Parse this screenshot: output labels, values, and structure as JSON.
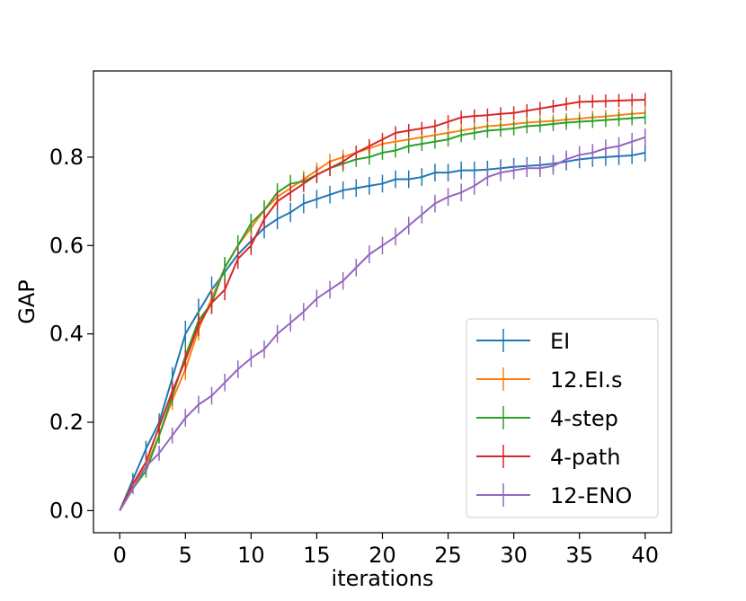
{
  "chart_data": {
    "type": "line",
    "title": "",
    "xlabel": "iterations",
    "ylabel": "GAP",
    "xlim": [
      -2,
      42
    ],
    "ylim": [
      -0.05,
      0.995
    ],
    "xticks": [
      0,
      5,
      10,
      15,
      20,
      25,
      30,
      35,
      40
    ],
    "xtick_labels": [
      "0",
      "5",
      "10",
      "15",
      "20",
      "25",
      "30",
      "35",
      "40"
    ],
    "yticks": [
      0.0,
      0.2,
      0.4,
      0.6,
      0.8
    ],
    "ytick_labels": [
      "0.0",
      "0.2",
      "0.4",
      "0.6",
      "0.8"
    ],
    "grid": false,
    "legend_position": "lower-right",
    "x": [
      0,
      1,
      2,
      3,
      4,
      5,
      6,
      7,
      8,
      9,
      10,
      11,
      12,
      13,
      14,
      15,
      16,
      17,
      18,
      19,
      20,
      21,
      22,
      23,
      24,
      25,
      26,
      27,
      28,
      29,
      30,
      31,
      32,
      33,
      34,
      35,
      36,
      37,
      38,
      39,
      40
    ],
    "series": [
      {
        "name": "EI",
        "color": "#1f77b4",
        "values": [
          0.0,
          0.07,
          0.14,
          0.2,
          0.3,
          0.4,
          0.45,
          0.5,
          0.54,
          0.58,
          0.61,
          0.64,
          0.66,
          0.675,
          0.695,
          0.705,
          0.715,
          0.725,
          0.73,
          0.735,
          0.74,
          0.75,
          0.75,
          0.755,
          0.765,
          0.765,
          0.77,
          0.77,
          0.772,
          0.775,
          0.778,
          0.78,
          0.782,
          0.785,
          0.79,
          0.795,
          0.798,
          0.8,
          0.802,
          0.804,
          0.81
        ],
        "errors": [
          0.0,
          0.015,
          0.018,
          0.02,
          0.025,
          0.03,
          0.03,
          0.03,
          0.028,
          0.026,
          0.025,
          0.024,
          0.023,
          0.022,
          0.022,
          0.021,
          0.02,
          0.02,
          0.02,
          0.02,
          0.02,
          0.02,
          0.02,
          0.02,
          0.02,
          0.02,
          0.02,
          0.02,
          0.02,
          0.02,
          0.02,
          0.02,
          0.02,
          0.02,
          0.02,
          0.02,
          0.02,
          0.02,
          0.02,
          0.02,
          0.02
        ]
      },
      {
        "name": "12.EI.s",
        "color": "#ff7f0e",
        "values": [
          0.0,
          0.06,
          0.1,
          0.17,
          0.25,
          0.32,
          0.41,
          0.48,
          0.55,
          0.6,
          0.64,
          0.68,
          0.71,
          0.73,
          0.75,
          0.77,
          0.79,
          0.8,
          0.81,
          0.82,
          0.83,
          0.835,
          0.84,
          0.845,
          0.85,
          0.855,
          0.86,
          0.865,
          0.87,
          0.872,
          0.875,
          0.878,
          0.88,
          0.882,
          0.885,
          0.887,
          0.89,
          0.892,
          0.895,
          0.898,
          0.9
        ],
        "errors": [
          0.0,
          0.012,
          0.015,
          0.018,
          0.022,
          0.025,
          0.025,
          0.025,
          0.024,
          0.023,
          0.022,
          0.021,
          0.02,
          0.02,
          0.019,
          0.018,
          0.018,
          0.017,
          0.016,
          0.016,
          0.015,
          0.015,
          0.015,
          0.015,
          0.015,
          0.015,
          0.015,
          0.015,
          0.015,
          0.015,
          0.015,
          0.015,
          0.015,
          0.015,
          0.015,
          0.015,
          0.015,
          0.015,
          0.015,
          0.015,
          0.015
        ]
      },
      {
        "name": "4-step",
        "color": "#2ca02c",
        "values": [
          0.0,
          0.05,
          0.09,
          0.17,
          0.26,
          0.35,
          0.43,
          0.47,
          0.55,
          0.6,
          0.65,
          0.68,
          0.72,
          0.74,
          0.745,
          0.76,
          0.775,
          0.785,
          0.795,
          0.8,
          0.81,
          0.815,
          0.825,
          0.83,
          0.835,
          0.84,
          0.85,
          0.855,
          0.86,
          0.862,
          0.865,
          0.87,
          0.872,
          0.875,
          0.878,
          0.88,
          0.882,
          0.884,
          0.886,
          0.888,
          0.89
        ],
        "errors": [
          0.0,
          0.012,
          0.015,
          0.018,
          0.022,
          0.025,
          0.025,
          0.025,
          0.024,
          0.023,
          0.022,
          0.022,
          0.021,
          0.02,
          0.02,
          0.019,
          0.018,
          0.018,
          0.017,
          0.017,
          0.016,
          0.016,
          0.016,
          0.016,
          0.016,
          0.016,
          0.016,
          0.016,
          0.016,
          0.016,
          0.016,
          0.016,
          0.016,
          0.016,
          0.016,
          0.016,
          0.016,
          0.016,
          0.016,
          0.016,
          0.016
        ]
      },
      {
        "name": "4-path",
        "color": "#d62728",
        "values": [
          0.0,
          0.06,
          0.11,
          0.19,
          0.27,
          0.34,
          0.42,
          0.47,
          0.5,
          0.57,
          0.6,
          0.66,
          0.7,
          0.72,
          0.74,
          0.76,
          0.775,
          0.79,
          0.81,
          0.825,
          0.84,
          0.855,
          0.86,
          0.865,
          0.87,
          0.88,
          0.89,
          0.893,
          0.895,
          0.898,
          0.9,
          0.905,
          0.91,
          0.915,
          0.92,
          0.925,
          0.926,
          0.927,
          0.928,
          0.929,
          0.93
        ],
        "errors": [
          0.0,
          0.012,
          0.015,
          0.018,
          0.022,
          0.025,
          0.025,
          0.025,
          0.024,
          0.023,
          0.022,
          0.021,
          0.02,
          0.02,
          0.019,
          0.018,
          0.018,
          0.017,
          0.016,
          0.016,
          0.015,
          0.015,
          0.015,
          0.015,
          0.015,
          0.015,
          0.015,
          0.015,
          0.015,
          0.015,
          0.015,
          0.015,
          0.015,
          0.015,
          0.015,
          0.015,
          0.015,
          0.015,
          0.015,
          0.015,
          0.015
        ]
      },
      {
        "name": "12-ENO",
        "color": "#9467bd",
        "values": [
          0.0,
          0.05,
          0.1,
          0.13,
          0.17,
          0.21,
          0.24,
          0.26,
          0.29,
          0.32,
          0.345,
          0.365,
          0.4,
          0.425,
          0.45,
          0.48,
          0.5,
          0.52,
          0.55,
          0.58,
          0.6,
          0.62,
          0.645,
          0.67,
          0.695,
          0.71,
          0.72,
          0.735,
          0.755,
          0.765,
          0.77,
          0.775,
          0.775,
          0.78,
          0.795,
          0.805,
          0.81,
          0.82,
          0.825,
          0.835,
          0.845
        ],
        "errors": [
          0.0,
          0.012,
          0.015,
          0.017,
          0.018,
          0.02,
          0.02,
          0.02,
          0.02,
          0.02,
          0.02,
          0.02,
          0.02,
          0.02,
          0.02,
          0.02,
          0.02,
          0.02,
          0.02,
          0.02,
          0.02,
          0.02,
          0.02,
          0.02,
          0.02,
          0.02,
          0.02,
          0.02,
          0.02,
          0.02,
          0.02,
          0.02,
          0.02,
          0.02,
          0.02,
          0.02,
          0.02,
          0.02,
          0.02,
          0.02,
          0.02
        ]
      }
    ]
  }
}
